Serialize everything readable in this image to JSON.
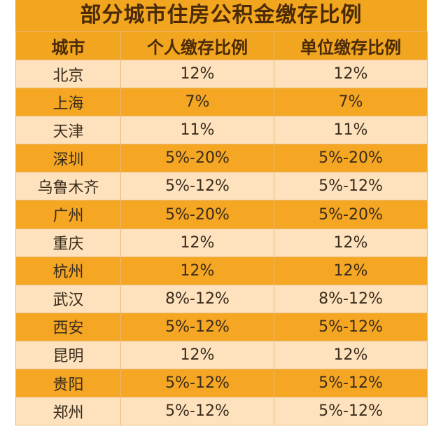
{
  "title": "部分城市住房公积金缴存比例",
  "headers": [
    "城市",
    "个人缴存比例",
    "单位缴存比例"
  ],
  "rows": [
    [
      "北京",
      "12%",
      "12%"
    ],
    [
      "上海",
      "7%",
      "7%"
    ],
    [
      "天津",
      "11%",
      "11%"
    ],
    [
      "深圳",
      "5%-20%",
      "5%-20%"
    ],
    [
      "乌鲁木齐",
      "5%-12%",
      "5%-12%"
    ],
    [
      "广州",
      "5%-20%",
      "5%-20%"
    ],
    [
      "重庆",
      "12%",
      "12%"
    ],
    [
      "杭州",
      "12%",
      "12%"
    ],
    [
      "武汉",
      "8%-12%",
      "8%-12%"
    ],
    [
      "西安",
      "5%-12%",
      "5%-12%"
    ],
    [
      "昆明",
      "12%",
      "12%"
    ],
    [
      "贵阳",
      "5%-12%",
      "5%-12%"
    ],
    [
      "郑州",
      "5%-12%",
      "5%-12%"
    ]
  ],
  "colors": {
    "header_bg": "#f2a51e",
    "row_light": "#fde2bd",
    "row_dark": "#f5a623",
    "header_text": "#4a2a08"
  }
}
